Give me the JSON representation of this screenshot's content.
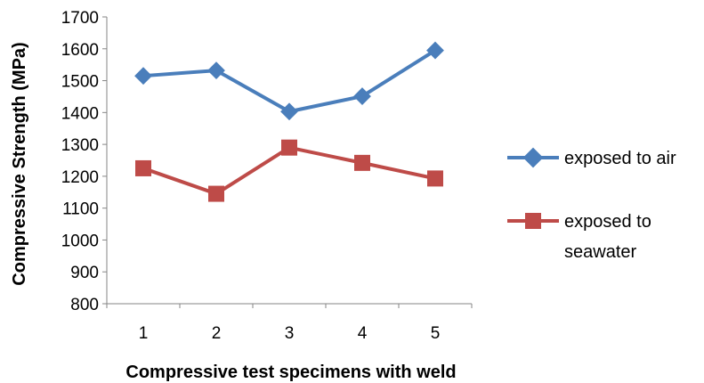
{
  "chart_data": {
    "type": "line",
    "categories": [
      "1",
      "2",
      "3",
      "4",
      "5"
    ],
    "series": [
      {
        "name": "exposed to air",
        "values": [
          1515,
          1532,
          1403,
          1451,
          1595
        ],
        "color": "#4a7ebb",
        "marker": "diamond"
      },
      {
        "name": "exposed to seawater",
        "values": [
          1225,
          1145,
          1290,
          1242,
          1193
        ],
        "color": "#be4b48",
        "marker": "square"
      }
    ],
    "title": "",
    "xlabel": "Compressive test specimens with weld",
    "ylabel": "Compressive Strength (MPa)",
    "ylim": [
      800,
      1700
    ],
    "yticks": [
      800,
      900,
      1000,
      1100,
      1200,
      1300,
      1400,
      1500,
      1600,
      1700
    ],
    "grid": false,
    "legend_position": "right"
  },
  "legend": {
    "air_label": "exposed to air",
    "seawater_label_line1": "exposed to",
    "seawater_label_line2": "seawater"
  }
}
